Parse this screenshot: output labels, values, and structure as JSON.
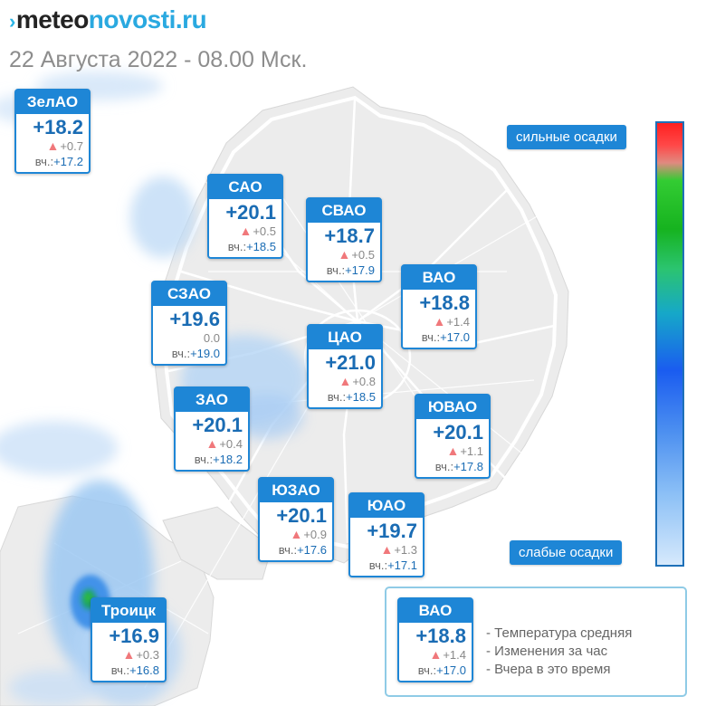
{
  "logo": {
    "arrow": "›",
    "part1": "meteo",
    "part2": "novosti.ru"
  },
  "subtitle": "22 Августа 2022 - 08.00 Мск.",
  "districts": [
    {
      "id": "zelao",
      "name": "ЗелАО",
      "temp": "+18.2",
      "change": "+0.7",
      "change_dir": "up",
      "yesterday_label": "вч.:",
      "yesterday": "+17.2"
    },
    {
      "id": "sao",
      "name": "САО",
      "temp": "+20.1",
      "change": "+0.5",
      "change_dir": "up",
      "yesterday_label": "вч.:",
      "yesterday": "+18.5"
    },
    {
      "id": "svao",
      "name": "СВАО",
      "temp": "+18.7",
      "change": "+0.5",
      "change_dir": "up",
      "yesterday_label": "вч.:",
      "yesterday": "+17.9"
    },
    {
      "id": "szao",
      "name": "СЗАО",
      "temp": "+19.6",
      "change": "0.0",
      "change_dir": "none",
      "yesterday_label": "вч.:",
      "yesterday": "+19.0"
    },
    {
      "id": "vao",
      "name": "ВАО",
      "temp": "+18.8",
      "change": "+1.4",
      "change_dir": "up",
      "yesterday_label": "вч.:",
      "yesterday": "+17.0"
    },
    {
      "id": "cao",
      "name": "ЦАО",
      "temp": "+21.0",
      "change": "+0.8",
      "change_dir": "up",
      "yesterday_label": "вч.:",
      "yesterday": "+18.5"
    },
    {
      "id": "zao",
      "name": "ЗАО",
      "temp": "+20.1",
      "change": "+0.4",
      "change_dir": "up",
      "yesterday_label": "вч.:",
      "yesterday": "+18.2"
    },
    {
      "id": "yuvao",
      "name": "ЮВАО",
      "temp": "+20.1",
      "change": "+1.1",
      "change_dir": "up",
      "yesterday_label": "вч.:",
      "yesterday": "+17.8"
    },
    {
      "id": "yuzao",
      "name": "ЮЗАО",
      "temp": "+20.1",
      "change": "+0.9",
      "change_dir": "up",
      "yesterday_label": "вч.:",
      "yesterday": "+17.6"
    },
    {
      "id": "yuao",
      "name": "ЮАО",
      "temp": "+19.7",
      "change": "+1.3",
      "change_dir": "up",
      "yesterday_label": "вч.:",
      "yesterday": "+17.1"
    },
    {
      "id": "troitsk",
      "name": "Троицк",
      "temp": "+16.9",
      "change": "+0.3",
      "change_dir": "up",
      "yesterday_label": "вч.:",
      "yesterday": "+16.8"
    }
  ],
  "scale": {
    "top_label": "сильные осадки",
    "bottom_label": "слабые осадки"
  },
  "legend": {
    "sample": {
      "name": "ВАО",
      "temp": "+18.8",
      "change": "+1.4",
      "change_dir": "up",
      "yesterday_label": "вч.:",
      "yesterday": "+17.0"
    },
    "items": [
      "- Температура средняя",
      "- Изменения за час",
      "- Вчера в это время"
    ]
  },
  "colors": {
    "card_blue": "#1e86d6",
    "temp_blue": "#1a6cb4",
    "rise_triangle": "#f0787b",
    "map_fill": "#ececec",
    "precip_light": "#9cc8f2"
  }
}
